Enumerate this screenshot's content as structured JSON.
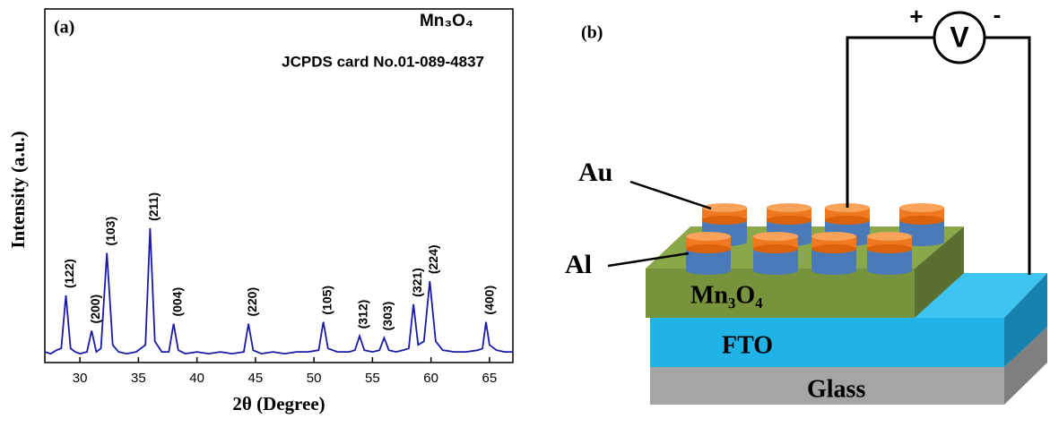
{
  "chart_data": {
    "type": "line",
    "panel_label": "(a)",
    "compound": "Mn₃O₄",
    "reference": "JCPDS card No.01-089-4837",
    "x_label": "2θ (Degree)",
    "y_label": "Intensity (a.u.)",
    "color": "#1a1aa6",
    "xlim": [
      27,
      67
    ],
    "ylim": [
      0,
      100
    ],
    "xticks": [
      30,
      35,
      40,
      45,
      50,
      55,
      60,
      65
    ],
    "x": [
      27,
      27.5,
      28,
      28.4,
      28.8,
      29.2,
      29.6,
      30,
      30.6,
      31.0,
      31.4,
      31.8,
      32.3,
      32.8,
      33.3,
      34,
      34.8,
      35.6,
      36.0,
      36.4,
      37,
      37.6,
      38.0,
      38.4,
      39,
      40,
      41,
      42,
      43,
      44,
      44.4,
      44.8,
      45.5,
      46.5,
      47.5,
      48.5,
      49.5,
      50.4,
      50.8,
      51.2,
      52,
      53,
      53.5,
      53.9,
      54.3,
      55,
      55.6,
      56.0,
      56.4,
      57,
      57.6,
      58.1,
      58.5,
      58.9,
      59.4,
      59.9,
      60.4,
      61,
      62,
      63,
      64,
      64.4,
      64.7,
      65.0,
      65.6,
      66.3,
      67
    ],
    "values": [
      3,
      2.5,
      3.5,
      4,
      19,
      4,
      3,
      2.5,
      3,
      9,
      3,
      4,
      31,
      5,
      3,
      2.5,
      3,
      5,
      38,
      6,
      3,
      3,
      11,
      3.5,
      2.5,
      3,
      2.5,
      3,
      2.5,
      3,
      11,
      3.5,
      2.5,
      3,
      2.5,
      3,
      3,
      3.5,
      11.5,
      4,
      3,
      3,
      3.5,
      7.5,
      3.5,
      3,
      3.5,
      7,
      3.5,
      3,
      3.5,
      4,
      16.5,
      5,
      6,
      23,
      6,
      3.5,
      3,
      3,
      3.5,
      4,
      11.5,
      5,
      3.5,
      3,
      3
    ],
    "annotations": [
      {
        "text": "(122)",
        "x": 28.8
      },
      {
        "text": "(200)",
        "x": 31.0
      },
      {
        "text": "(103)",
        "x": 32.3
      },
      {
        "text": "(211)",
        "x": 36.0
      },
      {
        "text": "(004)",
        "x": 38.0
      },
      {
        "text": "(220)",
        "x": 44.4
      },
      {
        "text": "(105)",
        "x": 50.8
      },
      {
        "text": "(312)",
        "x": 53.9
      },
      {
        "text": "(303)",
        "x": 56.0
      },
      {
        "text": "(321)",
        "x": 58.5
      },
      {
        "text": "(224)",
        "x": 59.9
      },
      {
        "text": "(400)",
        "x": 64.7
      }
    ]
  },
  "diagram": {
    "panel_label": "(b)",
    "plus": "+",
    "minus": "-",
    "meter": "V",
    "top_contact": "Au",
    "bottom_contact": "Al",
    "active_layer": "Mn₃O₄",
    "conductor": "FTO",
    "substrate": "Glass"
  }
}
